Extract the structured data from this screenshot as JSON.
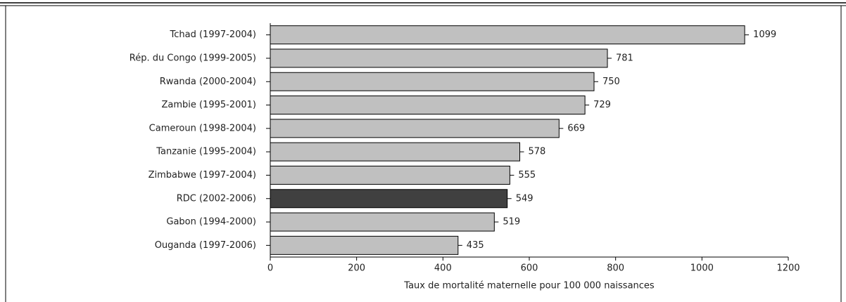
{
  "chart_data": {
    "type": "bar",
    "orientation": "horizontal",
    "xlabel": "Taux de mortalité maternelle pour 100 000 naissances",
    "categories": [
      "Tchad (1997-2004)",
      "Rép. du Congo (1999-2005)",
      "Rwanda (2000-2004)",
      "Zambie (1995-2001)",
      "Cameroun (1998-2004)",
      "Tanzanie (1995-2004)",
      "Zimbabwe (1997-2004)",
      "RDC (2002-2006)",
      "Gabon (1994-2000)",
      "Ouganda (1997-2006)"
    ],
    "values": [
      1099,
      781,
      750,
      729,
      669,
      578,
      555,
      549,
      519,
      435
    ],
    "colors": [
      "#c0c0c0",
      "#c0c0c0",
      "#c0c0c0",
      "#c0c0c0",
      "#c0c0c0",
      "#c0c0c0",
      "#c0c0c0",
      "#404040",
      "#c0c0c0",
      "#c0c0c0"
    ],
    "xlim": [
      0,
      1200
    ],
    "xticks": [
      0,
      200,
      400,
      600,
      800,
      1000,
      1200
    ],
    "grid": false
  }
}
